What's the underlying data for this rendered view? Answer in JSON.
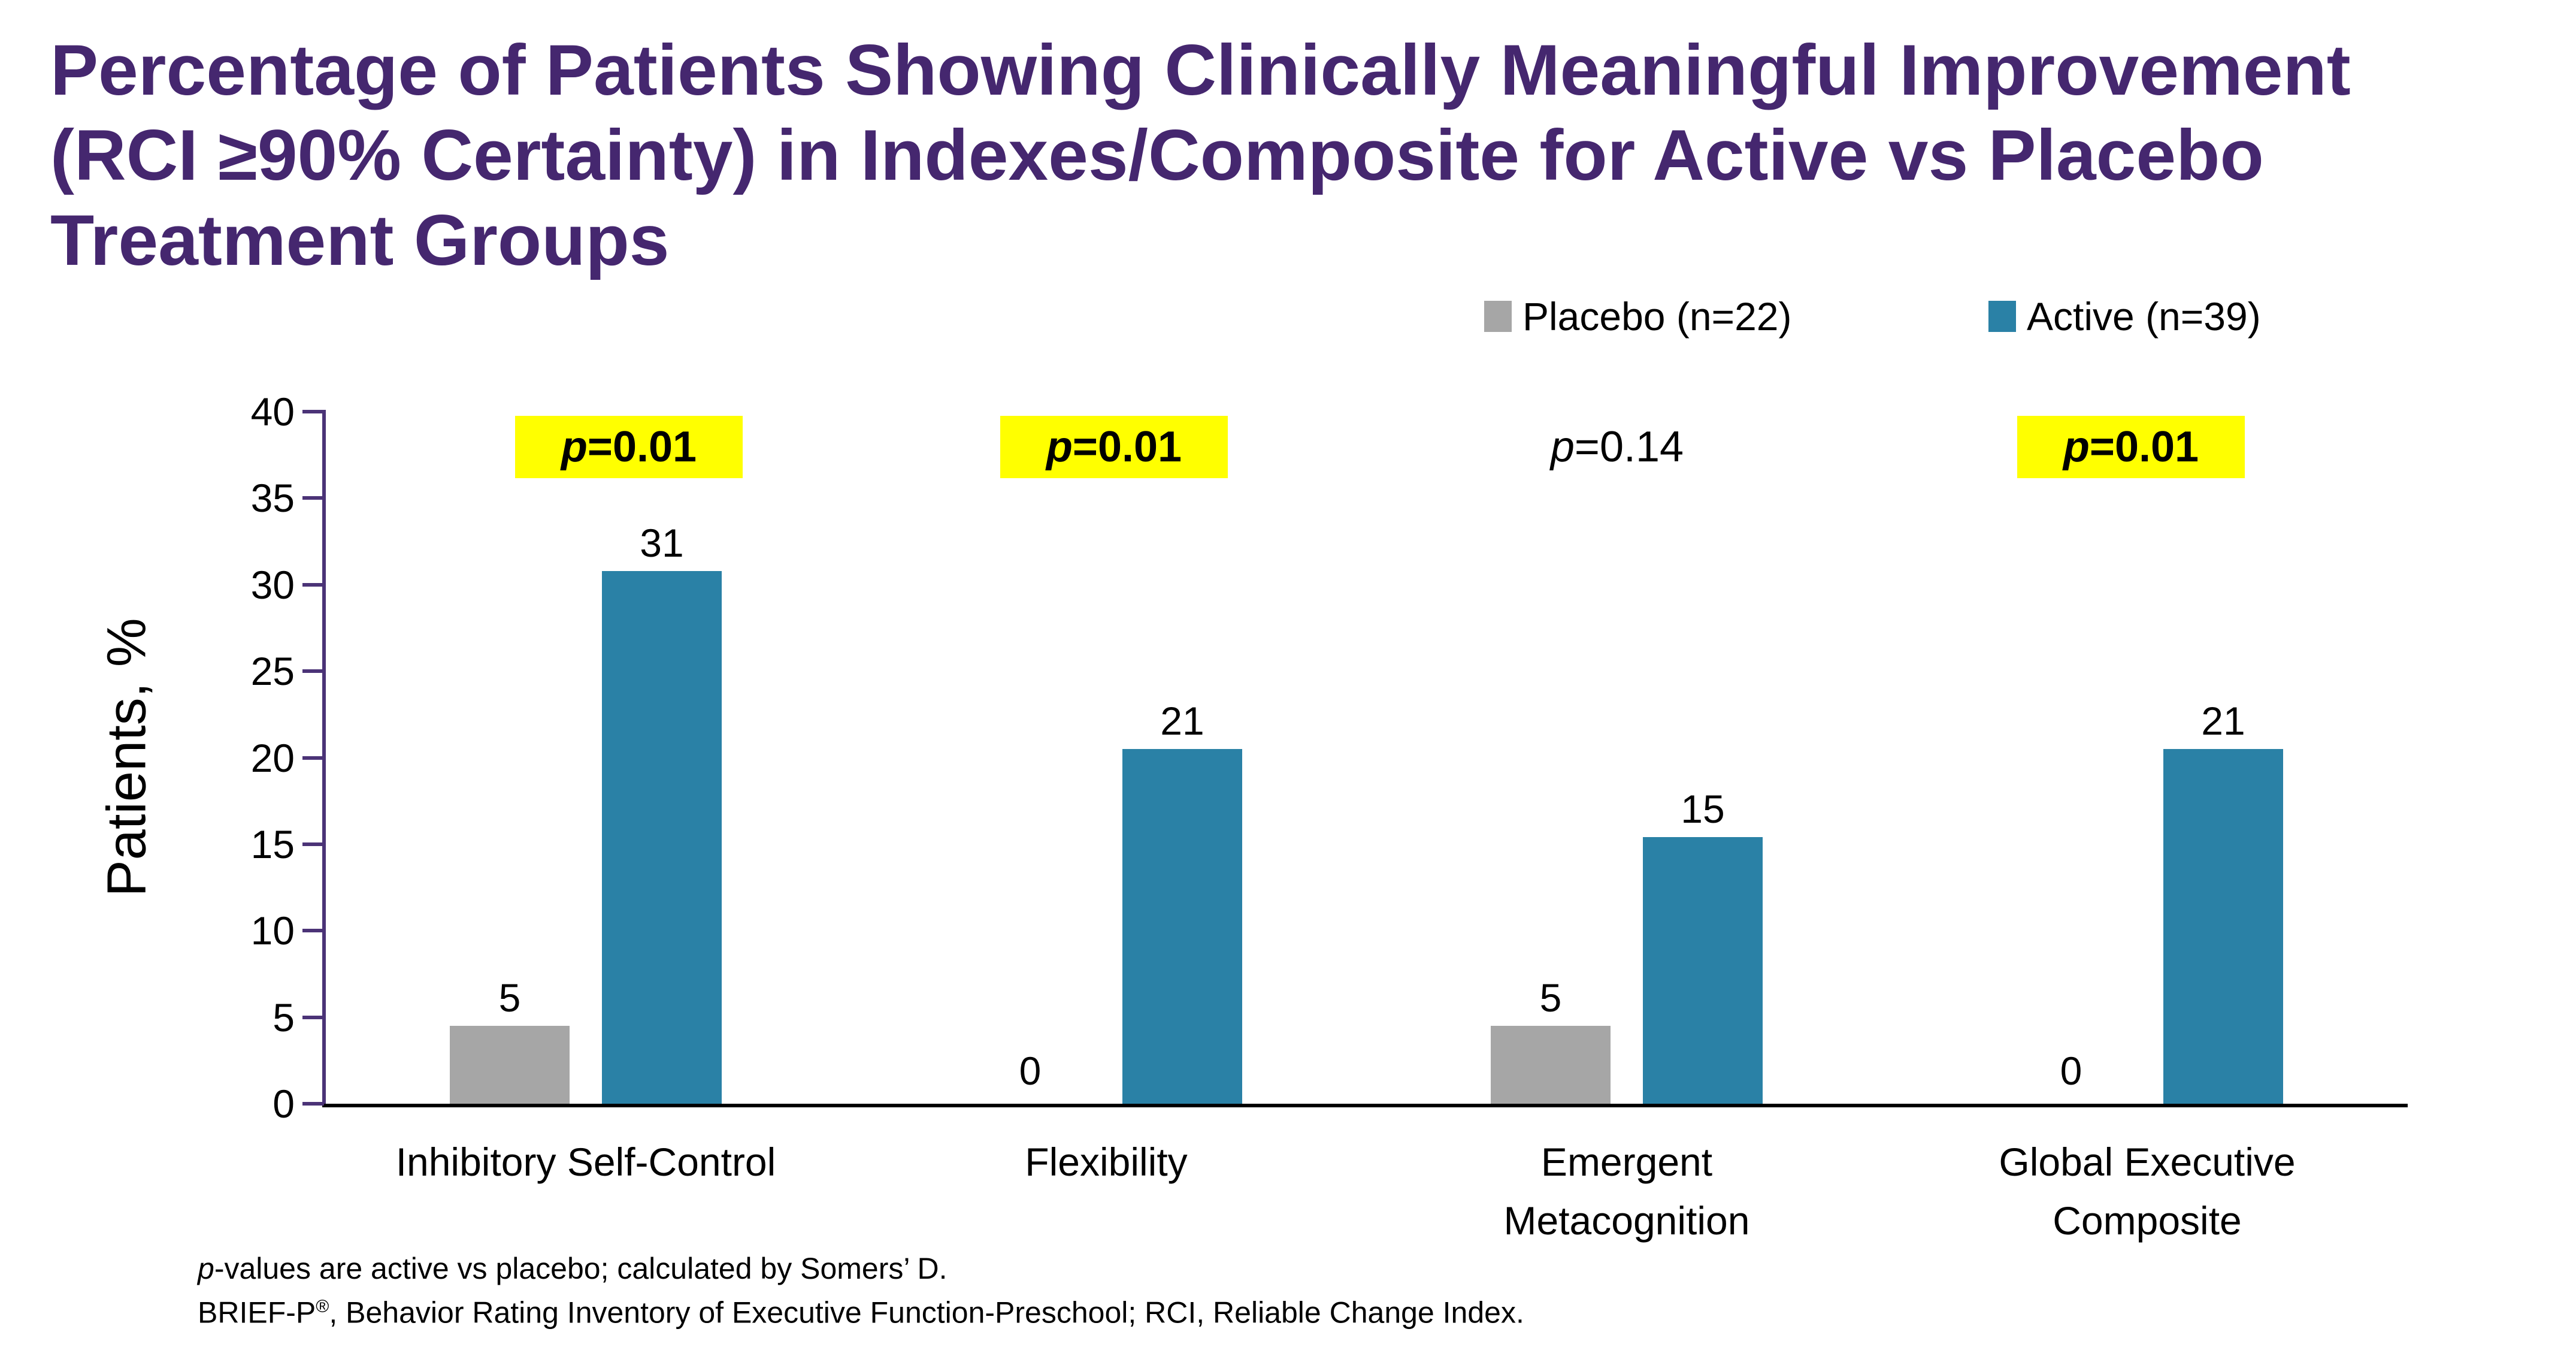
{
  "title": {
    "lines": [
      "Percentage of Patients Showing Clinically Meaningful Improvement",
      "(RCI ≥90% Certainty) in Indexes/Composite for Active vs Placebo",
      "Treatment Groups"
    ]
  },
  "chart_data": {
    "type": "bar",
    "title": "Percentage of Patients Showing Clinically Meaningful Improvement (RCI ≥90% Certainty) in Indexes/Composite for Active vs Placebo Treatment Groups",
    "xlabel": "",
    "ylabel": "Patients, %",
    "ylim": [
      0,
      40
    ],
    "yticks": [
      0,
      5,
      10,
      15,
      20,
      25,
      30,
      35,
      40
    ],
    "grid": false,
    "legend_position": "top-right",
    "categories": [
      "Inhibitory Self-Control",
      "Flexibility",
      "Emergent Metacognition",
      "Global Executive Composite"
    ],
    "category_label_lines": [
      [
        "Inhibitory Self-Control"
      ],
      [
        "Flexibility"
      ],
      [
        "Emergent",
        "Metacognition"
      ],
      [
        "Global Executive",
        "Composite"
      ]
    ],
    "series": [
      {
        "name": "Placebo (n=22)",
        "color": "#A6A6A6",
        "values": [
          4.5,
          0,
          4.5,
          0
        ],
        "value_labels": [
          "5",
          "0",
          "5",
          "0"
        ]
      },
      {
        "name": "Active (n=39)",
        "color": "#2A81A6",
        "values": [
          30.8,
          20.5,
          15.4,
          20.5
        ],
        "value_labels": [
          "31",
          "21",
          "15",
          "21"
        ]
      }
    ],
    "p_annotations": [
      {
        "prefix": "p",
        "rest": "=0.01",
        "highlighted": true
      },
      {
        "prefix": "p",
        "rest": "=0.01",
        "highlighted": true
      },
      {
        "prefix": "p",
        "rest": "=0.14",
        "highlighted": false
      },
      {
        "prefix": "p",
        "rest": "=0.01",
        "highlighted": true
      }
    ],
    "highlight_color": "#FFFF00"
  },
  "footnotes": [
    {
      "parts": [
        {
          "text": "p",
          "italic": true
        },
        {
          "text": "-values are active vs placebo; calculated by Somers’ D."
        }
      ]
    },
    {
      "parts": [
        {
          "text": "BRIEF-P"
        },
        {
          "text": "®",
          "sup": true
        },
        {
          "text": ", Behavior Rating Inventory of Executive Function-Preschool; RCI, Reliable Change Index."
        }
      ]
    }
  ],
  "colors": {
    "title_purple": "#45276F",
    "axis_purple": "#4B3377",
    "bar_placebo_gray": "#A6A6A6",
    "bar_active_teal": "#2A81A6",
    "p_highlight_yellow": "#FFFF00",
    "text_black": "#000000",
    "background": "#FFFFFF"
  }
}
